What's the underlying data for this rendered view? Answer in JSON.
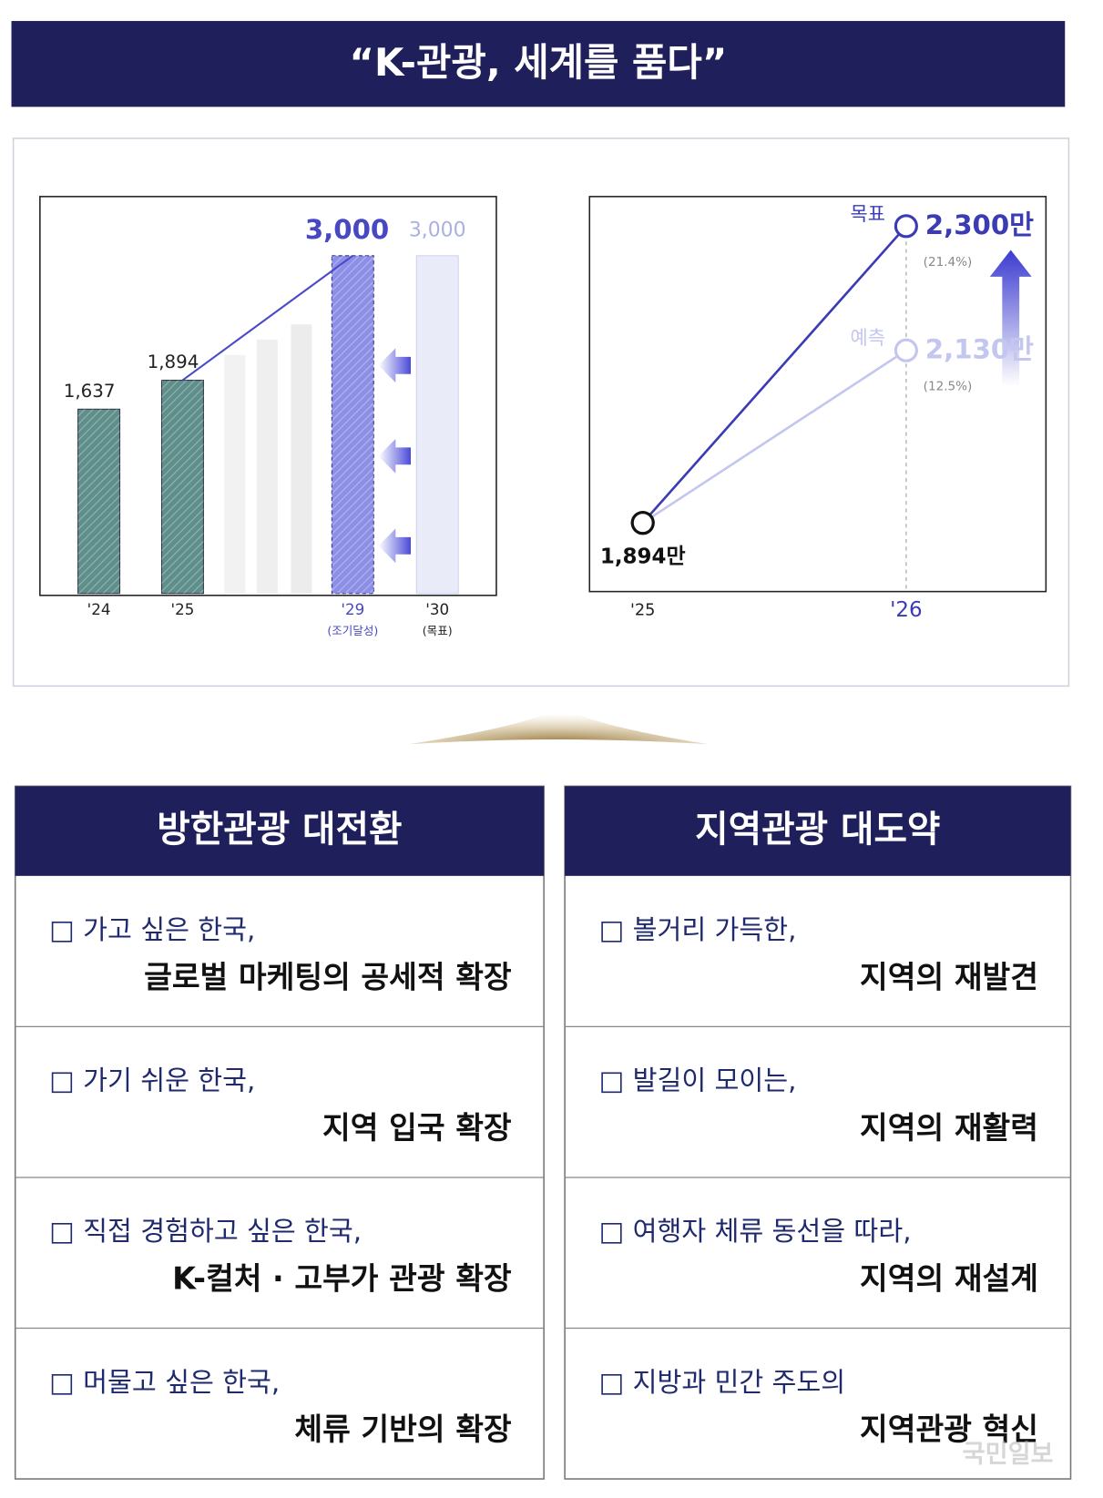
{
  "header": {
    "title": "“K-관광, 세계를 품다”"
  },
  "chart_data": [
    {
      "type": "bar",
      "categories": [
        "'24",
        "'25",
        "'29",
        "'30"
      ],
      "category_notes": [
        null,
        null,
        "(조기달성)",
        "(목표)"
      ],
      "values": [
        1637,
        1894,
        3000,
        3000
      ],
      "value_labels": [
        "1,637",
        "1,894",
        "3,000",
        "3,000"
      ],
      "colors": [
        "#5f8f8b",
        "#5f8f8b",
        "#8d8fe6",
        "#e9ebf9"
      ]
    },
    {
      "type": "line",
      "x": [
        "'25",
        "'26"
      ],
      "series": [
        {
          "name": "목표",
          "color": "#3b3bb5",
          "values": [
            1894,
            2300
          ],
          "value_labels": [
            "1,894만",
            "2,300만"
          ],
          "change_labels": [
            null,
            "(21.4%)"
          ]
        },
        {
          "name": "예측",
          "color": "#c3c6ee",
          "values": [
            1894,
            2130
          ],
          "value_labels": [
            null,
            "2,130만"
          ],
          "change_labels": [
            null,
            "(12.5%)"
          ]
        }
      ]
    }
  ],
  "panels": [
    {
      "title": "방한관광 대전환",
      "items": [
        {
          "lead": "□ 가고 싶은 한국,",
          "main": "글로벌 마케팅의 공세적 확장"
        },
        {
          "lead": "□ 가기 쉬운 한국,",
          "main": "지역 입국 확장"
        },
        {
          "lead": "□ 직접 경험하고 싶은 한국,",
          "main": "K-컬처 · 고부가 관광 확장"
        },
        {
          "lead": "□ 머물고 싶은 한국,",
          "main": "체류 기반의 확장"
        }
      ]
    },
    {
      "title": "지역관광 대도약",
      "items": [
        {
          "lead": "□ 볼거리 가득한,",
          "main": "지역의 재발견"
        },
        {
          "lead": "□ 발길이 모이는,",
          "main": "지역의 재활력"
        },
        {
          "lead": "□ 여행자 체류 동선을 따라,",
          "main": "지역의 재설계"
        },
        {
          "lead": "□ 지방과 민간 주도의",
          "main": "지역관광 혁신"
        }
      ]
    }
  ],
  "watermark": "국민일보"
}
